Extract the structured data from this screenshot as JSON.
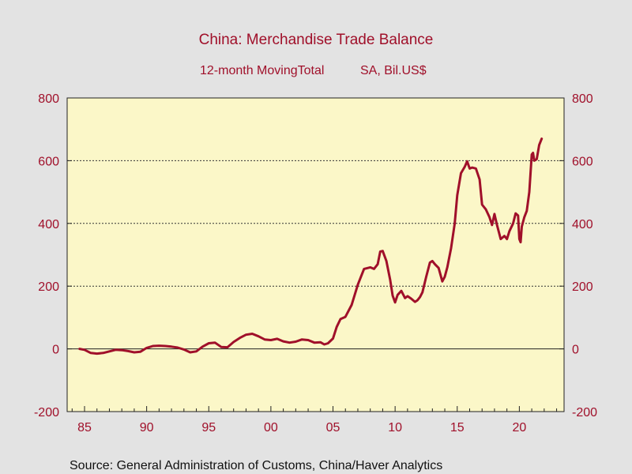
{
  "colors": {
    "background": "#e3e3e3",
    "plot_background": "#fbf7c8",
    "line": "#a0102a",
    "text": "#a0102a"
  },
  "chart_data": {
    "type": "line",
    "title": "China: Merchandise Trade Balance",
    "subtitle_left": "12-month MovingTotal",
    "subtitle_right": "SA, Bil.US$",
    "source": "Source:  General Administration of Customs, China/Haver Analytics",
    "xlim": [
      1983.6,
      2023.6
    ],
    "ylim": [
      -200,
      800
    ],
    "x_ticks": [
      1985,
      1990,
      1995,
      2000,
      2005,
      2010,
      2015,
      2020
    ],
    "x_tick_labels": [
      "85",
      "90",
      "95",
      "00",
      "05",
      "10",
      "15",
      "20"
    ],
    "y_ticks": [
      -200,
      0,
      200,
      400,
      600,
      800
    ],
    "y_tick_labels": [
      "-200",
      "0",
      "200",
      "400",
      "600",
      "800"
    ],
    "gridlines_y": [
      200,
      400,
      600
    ],
    "series": [
      {
        "x": [
          1984.6,
          1985.0,
          1985.5,
          1986.0,
          1986.5,
          1987.0,
          1987.5,
          1988.0,
          1988.5,
          1989.0,
          1989.5,
          1990.0,
          1990.5,
          1991.0,
          1991.5,
          1992.0,
          1992.5,
          1993.0,
          1993.5,
          1994.0,
          1994.5,
          1995.0,
          1995.5,
          1996.0,
          1996.5,
          1997.0,
          1997.5,
          1998.0,
          1998.5,
          1999.0,
          1999.5,
          2000.0,
          2000.5,
          2001.0,
          2001.5,
          2002.0,
          2002.5,
          2003.0,
          2003.5,
          2004.0,
          2004.3,
          2004.6,
          2005.0,
          2005.3,
          2005.6,
          2006.0,
          2006.5,
          2007.0,
          2007.5,
          2008.0,
          2008.3,
          2008.6,
          2008.8,
          2009.0,
          2009.3,
          2009.6,
          2009.8,
          2010.0,
          2010.2,
          2010.5,
          2010.8,
          2011.0,
          2011.3,
          2011.6,
          2011.8,
          2012.0,
          2012.2,
          2012.5,
          2012.8,
          2013.0,
          2013.2,
          2013.5,
          2013.8,
          2014.0,
          2014.2,
          2014.5,
          2014.8,
          2015.0,
          2015.3,
          2015.6,
          2015.8,
          2016.0,
          2016.2,
          2016.5,
          2016.8,
          2017.0,
          2017.3,
          2017.6,
          2017.8,
          2018.0,
          2018.2,
          2018.5,
          2018.8,
          2019.0,
          2019.2,
          2019.5,
          2019.7,
          2019.9,
          2020.0,
          2020.1,
          2020.2,
          2020.4,
          2020.6,
          2020.8,
          2021.0,
          2021.1,
          2021.2,
          2021.4,
          2021.6,
          2021.8
        ],
        "y": [
          0,
          -3,
          -13,
          -15,
          -13,
          -8,
          -3,
          -4,
          -7,
          -11,
          -9,
          3,
          9,
          10,
          9,
          7,
          4,
          -2,
          -11,
          -8,
          7,
          18,
          20,
          6,
          5,
          22,
          35,
          45,
          48,
          40,
          30,
          28,
          32,
          24,
          20,
          23,
          30,
          28,
          20,
          21,
          14,
          18,
          33,
          70,
          95,
          102,
          140,
          205,
          255,
          260,
          255,
          270,
          310,
          312,
          280,
          220,
          170,
          148,
          172,
          185,
          162,
          168,
          160,
          150,
          155,
          165,
          180,
          230,
          275,
          280,
          270,
          258,
          215,
          230,
          260,
          320,
          400,
          490,
          560,
          580,
          598,
          575,
          578,
          575,
          540,
          460,
          445,
          420,
          395,
          430,
          395,
          350,
          360,
          350,
          375,
          400,
          432,
          425,
          350,
          340,
          390,
          420,
          440,
          500,
          620,
          625,
          600,
          605,
          650,
          670
        ]
      }
    ]
  }
}
